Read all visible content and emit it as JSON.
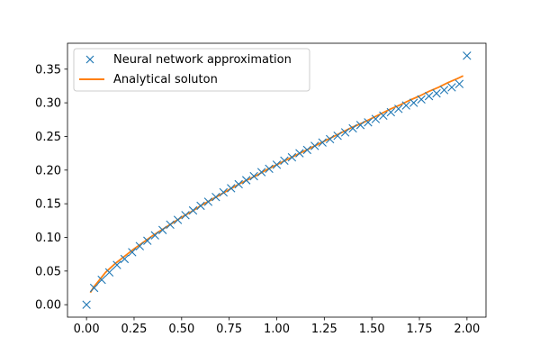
{
  "chart_data": {
    "type": "line",
    "title": "",
    "xlabel": "",
    "ylabel": "",
    "xlim": [
      -0.1,
      2.1
    ],
    "ylim": [
      -0.0185,
      0.3885
    ],
    "xticks": [
      0.0,
      0.25,
      0.5,
      0.75,
      1.0,
      1.25,
      1.5,
      1.75,
      2.0
    ],
    "xtick_labels": [
      "0.00",
      "0.25",
      "0.50",
      "0.75",
      "1.00",
      "1.25",
      "1.50",
      "1.75",
      "2.00"
    ],
    "yticks": [
      0.0,
      0.05,
      0.1,
      0.15,
      0.2,
      0.25,
      0.3,
      0.35
    ],
    "ytick_labels": [
      "0.00",
      "0.05",
      "0.10",
      "0.15",
      "0.20",
      "0.25",
      "0.30",
      "0.35"
    ],
    "grid": false,
    "legend_position": "top-left",
    "series": [
      {
        "name": "Neural network approximation",
        "kind": "scatter",
        "marker": "x",
        "color": "#1f77b4",
        "x": [
          0.0,
          0.04,
          0.08,
          0.12,
          0.16,
          0.2,
          0.24,
          0.28,
          0.32,
          0.36,
          0.4,
          0.44,
          0.48,
          0.52,
          0.56,
          0.6,
          0.64,
          0.68,
          0.72,
          0.76,
          0.8,
          0.84,
          0.88,
          0.92,
          0.96,
          1.0,
          1.04,
          1.08,
          1.12,
          1.16,
          1.2,
          1.24,
          1.28,
          1.32,
          1.36,
          1.4,
          1.44,
          1.48,
          1.52,
          1.56,
          1.6,
          1.64,
          1.68,
          1.72,
          1.76,
          1.8,
          1.84,
          1.88,
          1.92,
          1.96,
          2.0
        ],
        "y": [
          0.0,
          0.025,
          0.037,
          0.048,
          0.059,
          0.068,
          0.078,
          0.087,
          0.095,
          0.103,
          0.111,
          0.119,
          0.126,
          0.133,
          0.14,
          0.147,
          0.153,
          0.16,
          0.167,
          0.173,
          0.179,
          0.185,
          0.191,
          0.197,
          0.202,
          0.208,
          0.214,
          0.219,
          0.225,
          0.23,
          0.236,
          0.241,
          0.246,
          0.251,
          0.256,
          0.262,
          0.267,
          0.271,
          0.276,
          0.281,
          0.286,
          0.291,
          0.296,
          0.3,
          0.305,
          0.31,
          0.314,
          0.319,
          0.323,
          0.328,
          0.37
        ]
      },
      {
        "name": "Analytical soluton",
        "kind": "line",
        "color": "#ff7f0e",
        "x": [
          0.02,
          0.04,
          0.06,
          0.08,
          0.1,
          0.15,
          0.2,
          0.25,
          0.3,
          0.35,
          0.4,
          0.45,
          0.5,
          0.55,
          0.6,
          0.65,
          0.7,
          0.75,
          0.8,
          0.85,
          0.9,
          0.95,
          1.0,
          1.05,
          1.1,
          1.15,
          1.2,
          1.25,
          1.3,
          1.35,
          1.4,
          1.45,
          1.5,
          1.55,
          1.6,
          1.65,
          1.7,
          1.75,
          1.8,
          1.85,
          1.9,
          1.95,
          1.98
        ],
        "y": [
          0.018,
          0.027,
          0.034,
          0.041,
          0.048,
          0.061,
          0.072,
          0.083,
          0.093,
          0.103,
          0.112,
          0.121,
          0.13,
          0.138,
          0.147,
          0.155,
          0.163,
          0.171,
          0.179,
          0.186,
          0.193,
          0.201,
          0.208,
          0.215,
          0.222,
          0.229,
          0.236,
          0.243,
          0.25,
          0.257,
          0.264,
          0.27,
          0.277,
          0.284,
          0.291,
          0.297,
          0.304,
          0.31,
          0.317,
          0.323,
          0.33,
          0.336,
          0.34
        ]
      }
    ]
  }
}
